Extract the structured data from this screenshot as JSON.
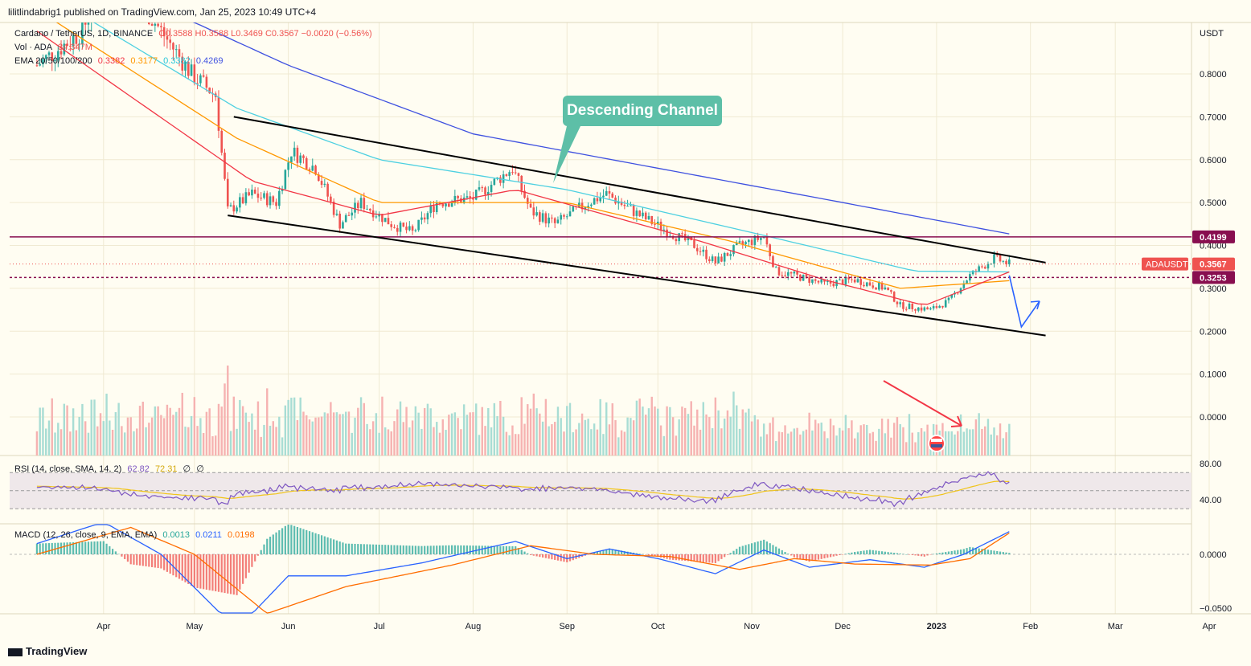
{
  "header": {
    "published": "lilitlindabrig1 published on TradingView.com, Jan 25, 2023 10:49 UTC+4"
  },
  "legend": {
    "symbol": "Cardano / TetherUS, 1D, BINANCE",
    "ohlc": "O0.3588 H0.3588 L0.3469 C0.3567 −0.0020 (−0.56%)",
    "vol_label": "Vol · ADA",
    "vol_value": "34.347M",
    "ema_label": "EMA 20/50/100/200",
    "ema_values": [
      "0.3382",
      "0.3177",
      "0.3382",
      "0.4269"
    ],
    "rsi_label": "RSI (14, close, SMA, 14, 2)",
    "rsi_values": [
      "62.82",
      "72.31",
      "∅",
      "∅"
    ],
    "macd_label": "MACD (12, 26, close, 9, EMA, EMA)",
    "macd_values": [
      "0.0013",
      "0.0211",
      "0.0198"
    ]
  },
  "colors": {
    "up": "#26a69a",
    "down": "#ef5350",
    "ema20": "#f23645",
    "ema50": "#ff9800",
    "ema100": "#4dd0e1",
    "ema200": "#3f51e0",
    "rsi": "#7e57c2",
    "rsi_ma": "#f0c419",
    "macd": "#2962ff",
    "signal": "#ff6d00",
    "hline": "#880e4f"
  },
  "annotation": {
    "callout": "Descending Channel"
  },
  "brand": "TradingView",
  "chart_data": {
    "type": "candlestick",
    "symbol": "ADAUSDT",
    "unit": "USDT",
    "y_ticks": [
      "0.8000",
      "0.7000",
      "0.6000",
      "0.5000",
      "0.4000",
      "0.3000",
      "0.2000",
      "0.1000",
      "0.0000"
    ],
    "ylim": [
      -0.04,
      0.92
    ],
    "x_ticks": [
      "Apr",
      "May",
      "Jun",
      "Jul",
      "Aug",
      "Sep",
      "Oct",
      "Nov",
      "Dec",
      "2023",
      "Feb",
      "Mar",
      "Apr"
    ],
    "price_labels": [
      {
        "text": "0.4199",
        "value": 0.4199
      },
      {
        "text": "0.3567",
        "value": 0.3567,
        "tag": "ADAUSDT"
      },
      {
        "text": "0.3253",
        "value": 0.3253
      }
    ],
    "price_path": [
      [
        "2022-03-10",
        0.82
      ],
      [
        "2022-03-25",
        0.9
      ],
      [
        "2022-04-05",
        1.1
      ],
      [
        "2022-04-15",
        0.95
      ],
      [
        "2022-04-30",
        0.8
      ],
      [
        "2022-05-08",
        0.75
      ],
      [
        "2022-05-12",
        0.48
      ],
      [
        "2022-05-20",
        0.52
      ],
      [
        "2022-05-28",
        0.5
      ],
      [
        "2022-06-02",
        0.62
      ],
      [
        "2022-06-10",
        0.58
      ],
      [
        "2022-06-18",
        0.45
      ],
      [
        "2022-06-25",
        0.5
      ],
      [
        "2022-07-05",
        0.45
      ],
      [
        "2022-07-12",
        0.43
      ],
      [
        "2022-07-20",
        0.5
      ],
      [
        "2022-08-01",
        0.51
      ],
      [
        "2022-08-14",
        0.58
      ],
      [
        "2022-08-20",
        0.48
      ],
      [
        "2022-08-28",
        0.45
      ],
      [
        "2022-09-08",
        0.5
      ],
      [
        "2022-09-14",
        0.52
      ],
      [
        "2022-09-25",
        0.47
      ],
      [
        "2022-10-05",
        0.43
      ],
      [
        "2022-10-13",
        0.4
      ],
      [
        "2022-10-20",
        0.36
      ],
      [
        "2022-10-28",
        0.4
      ],
      [
        "2022-11-05",
        0.42
      ],
      [
        "2022-11-09",
        0.34
      ],
      [
        "2022-11-15",
        0.33
      ],
      [
        "2022-11-25",
        0.31
      ],
      [
        "2022-12-05",
        0.32
      ],
      [
        "2022-12-15",
        0.3
      ],
      [
        "2022-12-20",
        0.26
      ],
      [
        "2022-12-30",
        0.25
      ],
      [
        "2023-01-05",
        0.27
      ],
      [
        "2023-01-12",
        0.33
      ],
      [
        "2023-01-20",
        0.37
      ],
      [
        "2023-01-25",
        0.3567
      ]
    ],
    "ema_paths": {
      "ema200": [
        [
          "2022-03-10",
          1.05
        ],
        [
          "2022-05-01",
          0.92
        ],
        [
          "2022-06-01",
          0.82
        ],
        [
          "2022-08-01",
          0.66
        ],
        [
          "2022-10-01",
          0.58
        ],
        [
          "2022-12-01",
          0.5
        ],
        [
          "2023-01-25",
          0.4269
        ]
      ],
      "ema100": [
        [
          "2022-03-10",
          1.0
        ],
        [
          "2022-05-15",
          0.72
        ],
        [
          "2022-07-01",
          0.6
        ],
        [
          "2022-09-01",
          0.53
        ],
        [
          "2022-11-01",
          0.43
        ],
        [
          "2022-12-25",
          0.34
        ],
        [
          "2023-01-25",
          0.3382
        ]
      ],
      "ema50": [
        [
          "2022-03-10",
          0.95
        ],
        [
          "2022-05-15",
          0.65
        ],
        [
          "2022-07-01",
          0.5
        ],
        [
          "2022-09-01",
          0.5
        ],
        [
          "2022-10-25",
          0.41
        ],
        [
          "2022-12-20",
          0.3
        ],
        [
          "2023-01-25",
          0.3177
        ]
      ],
      "ema20": [
        [
          "2022-03-10",
          0.9
        ],
        [
          "2022-05-20",
          0.55
        ],
        [
          "2022-07-01",
          0.47
        ],
        [
          "2022-08-15",
          0.53
        ],
        [
          "2022-10-15",
          0.41
        ],
        [
          "2022-11-25",
          0.32
        ],
        [
          "2022-12-28",
          0.26
        ],
        [
          "2023-01-25",
          0.3382
        ]
      ]
    },
    "channel": {
      "upper": [
        [
          "2022-05-14",
          0.7
        ],
        [
          "2023-02-06",
          0.36
        ]
      ],
      "lower": [
        [
          "2022-05-12",
          0.47
        ],
        [
          "2023-02-06",
          0.19
        ]
      ]
    },
    "projection": [
      [
        "2023-01-25",
        0.33
      ],
      [
        "2023-01-29",
        0.21
      ],
      [
        "2023-02-04",
        0.27
      ]
    ]
  }
}
